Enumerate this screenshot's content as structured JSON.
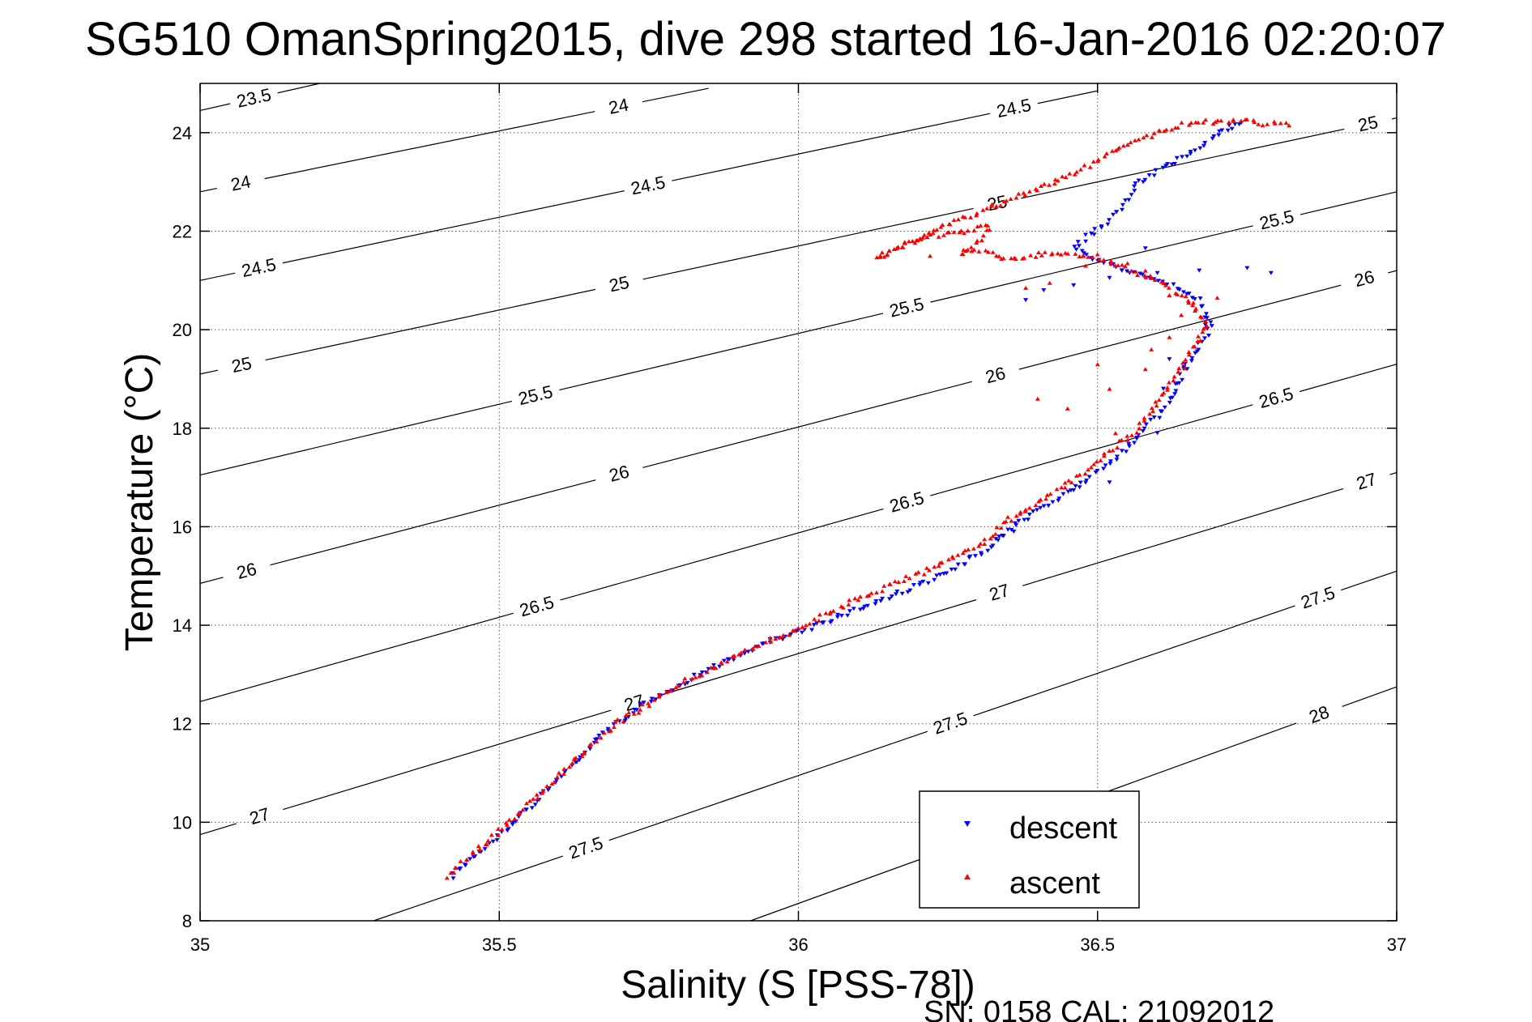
{
  "chart_data": {
    "type": "scatter",
    "title": "SG510 OmanSpring2015, dive 298 started 16-Jan-2016 02:20:07",
    "xlabel": "Salinity (S [PSS-78])",
    "ylabel": "Temperature (°C)",
    "xlim": [
      35,
      37
    ],
    "ylim": [
      8,
      25
    ],
    "x_ticks": [
      "35",
      "35.5",
      "36",
      "36.5",
      "37"
    ],
    "y_ticks": [
      "8",
      "10",
      "12",
      "14",
      "16",
      "18",
      "20",
      "22",
      "24"
    ],
    "grid": true,
    "legend_position": "bottom-right",
    "footer": "SN: 0158  CAL: 21092012",
    "colors": {
      "descent": "#0000ff",
      "ascent": "#ff0000",
      "contour": "#000000"
    },
    "density_contours": [
      {
        "label": "23.5",
        "line": [
          [
            35,
            24.45
          ],
          [
            35.2,
            25.0
          ]
        ],
        "labels_at": [
          [
            35.09,
            24.7
          ]
        ]
      },
      {
        "label": "24",
        "line": [
          [
            35,
            22.8
          ],
          [
            35.85,
            24.9
          ]
        ],
        "labels_at": [
          [
            35.07,
            22.85
          ],
          [
            35.7,
            24.5
          ]
        ]
      },
      {
        "label": "24.5",
        "line": [
          [
            35,
            21.0
          ],
          [
            36.5,
            24.85
          ]
        ],
        "labels_at": [
          [
            35.1,
            21.15
          ],
          [
            35.75,
            22.85
          ],
          [
            36.36,
            24.5
          ]
        ]
      },
      {
        "label": "25",
        "line": [
          [
            35,
            19.1
          ],
          [
            37,
            24.3
          ]
        ],
        "labels_at": [
          [
            35.07,
            19.25
          ],
          [
            35.7,
            20.95
          ],
          [
            36.33,
            22.7
          ],
          [
            36.95,
            24.3
          ]
        ]
      },
      {
        "label": "25.5",
        "line": [
          [
            35,
            17.05
          ],
          [
            37,
            22.8
          ]
        ],
        "labels_at": [
          [
            35.56,
            18.7
          ],
          [
            36.18,
            20.5
          ],
          [
            36.8,
            22.2
          ]
        ]
      },
      {
        "label": "26",
        "line": [
          [
            35,
            14.85
          ],
          [
            37,
            21.2
          ]
        ],
        "labels_at": [
          [
            35.08,
            15.0
          ],
          [
            35.7,
            17.1
          ],
          [
            36.33,
            19.05
          ],
          [
            36.95,
            20.85
          ]
        ]
      },
      {
        "label": "26.5",
        "line": [
          [
            35,
            12.45
          ],
          [
            37,
            19.3
          ]
        ],
        "labels_at": [
          [
            35.56,
            14.5
          ],
          [
            36.18,
            16.55
          ],
          [
            36.8,
            18.55
          ]
        ]
      },
      {
        "label": "27",
        "line": [
          [
            35,
            9.75
          ],
          [
            37,
            17.1
          ]
        ],
        "labels_at": [
          [
            35.1,
            10.1
          ],
          [
            35.72,
            12.65
          ],
          [
            36.33,
            14.9
          ],
          [
            36.95,
            16.9
          ]
        ]
      },
      {
        "label": "27.5",
        "line": [
          [
            35.29,
            8.0
          ],
          [
            37,
            15.1
          ]
        ],
        "labels_at": [
          [
            35.64,
            9.65
          ],
          [
            36.25,
            12.15
          ],
          [
            36.87,
            14.5
          ]
        ]
      },
      {
        "label": "28",
        "line": [
          [
            35.92,
            8.0
          ],
          [
            37,
            12.75
          ]
        ],
        "labels_at": [
          [
            36.87,
            12.2
          ]
        ]
      }
    ],
    "series": [
      {
        "name": "descent",
        "marker": "down-triangle",
        "color": "#0000ff",
        "path": [
          [
            35.42,
            8.9
          ],
          [
            35.5,
            9.7
          ],
          [
            35.6,
            10.9
          ],
          [
            35.68,
            11.85
          ],
          [
            35.75,
            12.45
          ],
          [
            35.85,
            13.1
          ],
          [
            35.95,
            13.65
          ],
          [
            36.02,
            13.95
          ],
          [
            36.15,
            14.55
          ],
          [
            36.25,
            15.05
          ],
          [
            36.32,
            15.6
          ],
          [
            36.36,
            16.0
          ],
          [
            36.42,
            16.45
          ],
          [
            36.49,
            17.0
          ],
          [
            36.55,
            17.6
          ],
          [
            36.58,
            18.0
          ],
          [
            36.62,
            18.5
          ],
          [
            36.64,
            19.1
          ],
          [
            36.66,
            19.5
          ],
          [
            36.69,
            20.05
          ],
          [
            36.67,
            20.6
          ],
          [
            36.63,
            20.85
          ],
          [
            36.57,
            21.1
          ],
          [
            36.5,
            21.4
          ],
          [
            36.46,
            21.7
          ],
          [
            36.51,
            22.1
          ],
          [
            36.55,
            22.6
          ],
          [
            36.57,
            23.0
          ],
          [
            36.63,
            23.4
          ],
          [
            36.7,
            23.95
          ],
          [
            36.74,
            24.2
          ]
        ],
        "extra": [
          [
            36.38,
            20.6
          ],
          [
            36.41,
            20.8
          ],
          [
            36.46,
            20.9
          ],
          [
            36.52,
            21.05
          ],
          [
            36.6,
            21.15
          ],
          [
            36.67,
            21.2
          ],
          [
            36.75,
            21.25
          ],
          [
            36.79,
            21.15
          ],
          [
            36.58,
            21.65
          ],
          [
            36.62,
            19.4
          ],
          [
            36.65,
            19.2
          ],
          [
            36.61,
            18.8
          ],
          [
            36.63,
            18.9
          ],
          [
            36.68,
            20.1
          ],
          [
            36.72,
            24.15
          ],
          [
            36.6,
            17.9
          ],
          [
            36.52,
            16.9
          ],
          [
            36.47,
            16.8
          ],
          [
            36.36,
            15.9
          ],
          [
            36.33,
            15.75
          ]
        ]
      },
      {
        "name": "ascent",
        "marker": "up-triangle",
        "color": "#ff0000",
        "path": [
          [
            35.41,
            8.9
          ],
          [
            35.48,
            9.6
          ],
          [
            35.55,
            10.4
          ],
          [
            35.62,
            11.2
          ],
          [
            35.7,
            12.05
          ],
          [
            35.8,
            12.8
          ],
          [
            35.9,
            13.4
          ],
          [
            36.0,
            13.95
          ],
          [
            36.1,
            14.55
          ],
          [
            36.2,
            15.05
          ],
          [
            36.3,
            15.6
          ],
          [
            36.35,
            16.1
          ],
          [
            36.4,
            16.5
          ],
          [
            36.46,
            16.95
          ],
          [
            36.52,
            17.55
          ],
          [
            36.57,
            18.0
          ],
          [
            36.6,
            18.5
          ],
          [
            36.65,
            19.4
          ],
          [
            36.68,
            20.1
          ],
          [
            36.66,
            20.5
          ],
          [
            36.6,
            21.0
          ],
          [
            36.5,
            21.5
          ],
          [
            36.42,
            21.55
          ],
          [
            36.38,
            21.5
          ],
          [
            36.34,
            21.45
          ],
          [
            36.31,
            21.6
          ],
          [
            36.27,
            21.55
          ],
          [
            36.3,
            21.8
          ],
          [
            36.32,
            22.1
          ],
          [
            36.28,
            22.0
          ],
          [
            36.22,
            21.9
          ],
          [
            36.18,
            21.75
          ],
          [
            36.13,
            21.45
          ],
          [
            36.2,
            21.85
          ],
          [
            36.3,
            22.4
          ],
          [
            36.45,
            23.1
          ],
          [
            36.55,
            23.8
          ],
          [
            36.65,
            24.2
          ],
          [
            36.73,
            24.25
          ],
          [
            36.82,
            24.15
          ]
        ],
        "extra": [
          [
            36.38,
            20.85
          ],
          [
            36.42,
            20.95
          ],
          [
            36.48,
            21.3
          ],
          [
            36.55,
            21.35
          ],
          [
            36.62,
            20.7
          ],
          [
            36.66,
            20.55
          ],
          [
            36.7,
            20.65
          ],
          [
            36.64,
            20.3
          ],
          [
            36.59,
            19.6
          ],
          [
            36.58,
            19.2
          ],
          [
            36.52,
            18.8
          ],
          [
            36.45,
            18.4
          ],
          [
            36.4,
            18.6
          ],
          [
            36.5,
            19.3
          ],
          [
            36.53,
            17.9
          ],
          [
            36.68,
            20.05
          ],
          [
            36.22,
            21.5
          ],
          [
            36.35,
            16.2
          ],
          [
            36.58,
            21.2
          ],
          [
            36.62,
            19.85
          ]
        ]
      }
    ]
  }
}
